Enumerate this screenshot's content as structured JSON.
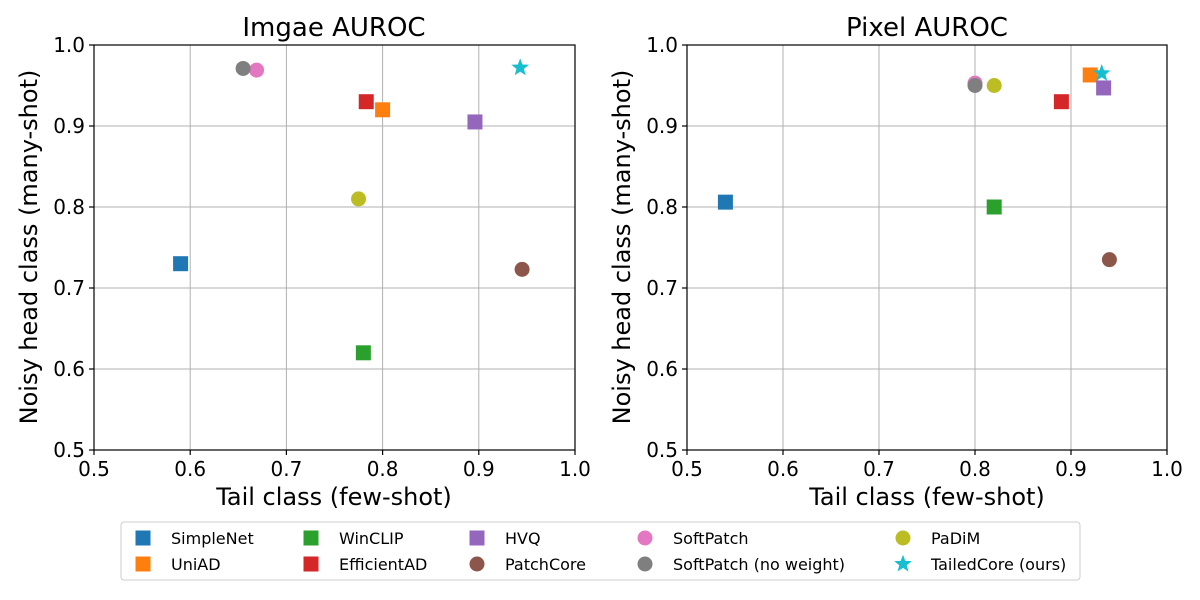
{
  "chart_data": [
    {
      "type": "scatter",
      "title": "Imgae AUROC",
      "xlabel": "Tail class (few-shot)",
      "ylabel": "Noisy head class (many-shot)",
      "xlim": [
        0.5,
        1.0
      ],
      "ylim": [
        0.5,
        1.0
      ],
      "xticks": [
        "0.5",
        "0.6",
        "0.7",
        "0.8",
        "0.9",
        "1.0"
      ],
      "yticks": [
        "0.5",
        "0.6",
        "0.7",
        "0.8",
        "0.9",
        "1.0"
      ],
      "grid": true,
      "series": [
        {
          "name": "SimpleNet",
          "x": [
            0.59
          ],
          "y": [
            0.73
          ]
        },
        {
          "name": "UniAD",
          "x": [
            0.8
          ],
          "y": [
            0.92
          ]
        },
        {
          "name": "WinCLIP",
          "x": [
            0.78
          ],
          "y": [
            0.62
          ]
        },
        {
          "name": "EfficientAD",
          "x": [
            0.783
          ],
          "y": [
            0.93
          ]
        },
        {
          "name": "HVQ",
          "x": [
            0.896
          ],
          "y": [
            0.905
          ]
        },
        {
          "name": "PatchCore",
          "x": [
            0.945
          ],
          "y": [
            0.723
          ]
        },
        {
          "name": "SoftPatch",
          "x": [
            0.669
          ],
          "y": [
            0.969
          ]
        },
        {
          "name": "SoftPatch (no weight)",
          "x": [
            0.655
          ],
          "y": [
            0.971
          ]
        },
        {
          "name": "PaDiM",
          "x": [
            0.775
          ],
          "y": [
            0.81
          ]
        },
        {
          "name": "TailedCore (ours)",
          "x": [
            0.943
          ],
          "y": [
            0.972
          ]
        }
      ]
    },
    {
      "type": "scatter",
      "title": "Pixel AUROC",
      "xlabel": "Tail class (few-shot)",
      "ylabel": "Noisy head class (many-shot)",
      "xlim": [
        0.5,
        1.0
      ],
      "ylim": [
        0.5,
        1.0
      ],
      "xticks": [
        "0.5",
        "0.6",
        "0.7",
        "0.8",
        "0.9",
        "1.0"
      ],
      "yticks": [
        "0.5",
        "0.6",
        "0.7",
        "0.8",
        "0.9",
        "1.0"
      ],
      "grid": true,
      "series": [
        {
          "name": "SimpleNet",
          "x": [
            0.54
          ],
          "y": [
            0.806
          ]
        },
        {
          "name": "UniAD",
          "x": [
            0.92
          ],
          "y": [
            0.963
          ]
        },
        {
          "name": "WinCLIP",
          "x": [
            0.82
          ],
          "y": [
            0.8
          ]
        },
        {
          "name": "EfficientAD",
          "x": [
            0.89
          ],
          "y": [
            0.93
          ]
        },
        {
          "name": "HVQ",
          "x": [
            0.934
          ],
          "y": [
            0.947
          ]
        },
        {
          "name": "PatchCore",
          "x": [
            0.94
          ],
          "y": [
            0.735
          ]
        },
        {
          "name": "SoftPatch",
          "x": [
            0.8
          ],
          "y": [
            0.953
          ]
        },
        {
          "name": "SoftPatch (no weight)",
          "x": [
            0.8
          ],
          "y": [
            0.95
          ]
        },
        {
          "name": "PaDiM",
          "x": [
            0.82
          ],
          "y": [
            0.95
          ]
        },
        {
          "name": "TailedCore (ours)",
          "x": [
            0.932
          ],
          "y": [
            0.965
          ]
        }
      ]
    }
  ],
  "legend": {
    "placement": "bottom",
    "items": [
      {
        "label": "SimpleNet",
        "marker": "square",
        "color": "#1f77b4"
      },
      {
        "label": "UniAD",
        "marker": "square",
        "color": "#ff7f0e"
      },
      {
        "label": "WinCLIP",
        "marker": "square",
        "color": "#2ca02c"
      },
      {
        "label": "EfficientAD",
        "marker": "square",
        "color": "#d62728"
      },
      {
        "label": "HVQ",
        "marker": "square",
        "color": "#9467bd"
      },
      {
        "label": "PatchCore",
        "marker": "circle",
        "color": "#8c564b"
      },
      {
        "label": "SoftPatch",
        "marker": "circle",
        "color": "#e377c2"
      },
      {
        "label": "SoftPatch (no weight)",
        "marker": "circle",
        "color": "#7f7f7f"
      },
      {
        "label": "PaDiM",
        "marker": "circle",
        "color": "#bcbd22"
      },
      {
        "label": "TailedCore (ours)",
        "marker": "star",
        "color": "#17becf"
      }
    ]
  }
}
